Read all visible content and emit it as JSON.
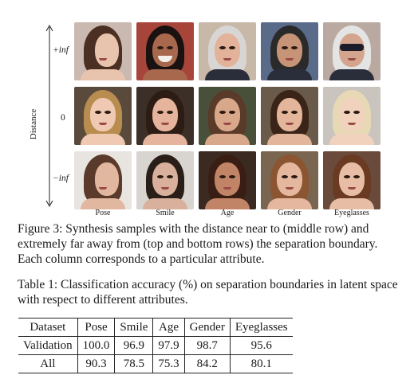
{
  "figure": {
    "axis_title": "Distance",
    "row_labels": [
      "+inf",
      "0",
      "−inf"
    ],
    "columns": [
      "Pose",
      "Smile",
      "Age",
      "Gender",
      "Eyeglasses"
    ],
    "caption": "Figure 3: Synthesis samples with the distance near to (middle row) and extremely far away from (top and bottom rows) the separation boundary. Each column corresponds to a particular attribute."
  },
  "table": {
    "caption": "Table 1: Classification accuracy (%) on separation boundaries in latent space with respect to different attributes.",
    "headers": [
      "Dataset",
      "Pose",
      "Smile",
      "Age",
      "Gender",
      "Eyeglasses"
    ],
    "rows": [
      [
        "Validation",
        "100.0",
        "96.9",
        "97.9",
        "98.7",
        "95.6"
      ],
      [
        "All",
        "90.3",
        "78.5",
        "75.3",
        "84.2",
        "80.1"
      ]
    ]
  }
}
